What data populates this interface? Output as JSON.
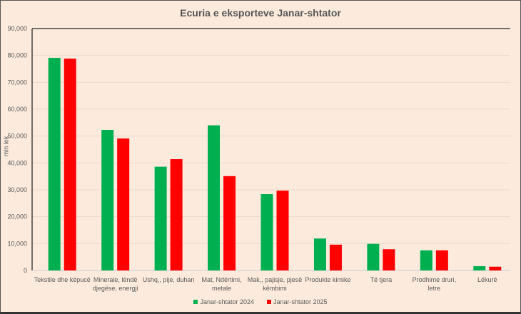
{
  "chart_data": {
    "type": "bar",
    "title": "Ecuria e eksporteve Janar-shtator",
    "xlabel": "",
    "ylabel": "mln lek",
    "ylim": [
      0,
      90000
    ],
    "yticks": [
      "0",
      "10,000",
      "20,000",
      "30,000",
      "40,000",
      "50,000",
      "60,000",
      "70,000",
      "80,000",
      "90,000"
    ],
    "grid": true,
    "legend_position": "bottom",
    "categories": [
      [
        "Tekstile dhe këpucë"
      ],
      [
        "Minerale, lëndë",
        "djegëse, energji"
      ],
      [
        "Ushq,, pije, duhan"
      ],
      [
        "Mat, Ndërtimi,",
        "metale"
      ],
      [
        "Mak,, pajisje, pjesë",
        "këmbimi"
      ],
      [
        "Produkte kimike"
      ],
      [
        "Të tjera"
      ],
      [
        "Prodhime druri,",
        "letre"
      ],
      [
        "Lëkurë"
      ]
    ],
    "series": [
      {
        "name": "Janar-shtator 2024",
        "color": "#00b050",
        "values": [
          79100,
          52300,
          38600,
          54000,
          28400,
          11900,
          9900,
          7500,
          1600
        ]
      },
      {
        "name": "Janar-shtator 2025",
        "color": "#ff0000",
        "values": [
          78800,
          49100,
          41400,
          35100,
          29700,
          9600,
          7900,
          7500,
          1400
        ]
      }
    ]
  }
}
